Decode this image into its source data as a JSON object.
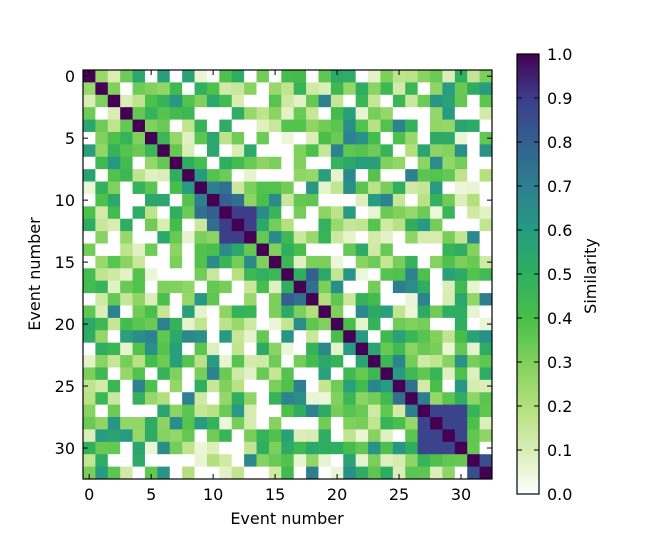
{
  "chart_data": {
    "type": "heatmap",
    "title": "",
    "xlabel": "Event number",
    "ylabel": "Event number",
    "colorbar_label": "Similarity",
    "size": 33,
    "xlim": [
      -0.5,
      32.5
    ],
    "ylim": [
      32.5,
      -0.5
    ],
    "x_ticks": [
      0,
      5,
      10,
      15,
      20,
      25,
      30
    ],
    "y_ticks": [
      0,
      5,
      10,
      15,
      20,
      25,
      30
    ],
    "colorbar_ticks": [
      "0.0",
      "0.1",
      "0.2",
      "0.3",
      "0.4",
      "0.5",
      "0.6",
      "0.7",
      "0.8",
      "0.9",
      "1.0"
    ],
    "colorbar_range": [
      0.0,
      1.0
    ],
    "colormap": "viridis_r",
    "colormap_stops": [
      "#ffffff",
      "#d9edb4",
      "#b3e07c",
      "#7fd05c",
      "#48bf4a",
      "#2fae5f",
      "#279a83",
      "#2d7f8f",
      "#345f8f",
      "#3d3d8a",
      "#440154"
    ],
    "grid": false,
    "blocks": [
      {
        "start": 11,
        "end": 13,
        "value": 0.9
      },
      {
        "start": 27,
        "end": 30,
        "value": 0.88
      }
    ],
    "pair_values": [
      {
        "i": 0,
        "j": 1,
        "v": 0.25
      },
      {
        "i": 0,
        "j": 2,
        "v": 0.1
      },
      {
        "i": 1,
        "j": 2,
        "v": 0.3
      },
      {
        "i": 2,
        "j": 3,
        "v": 0.1
      },
      {
        "i": 3,
        "j": 4,
        "v": 0.35
      },
      {
        "i": 4,
        "j": 5,
        "v": 0.3
      },
      {
        "i": 5,
        "j": 6,
        "v": 0.45
      },
      {
        "i": 6,
        "j": 7,
        "v": 0.35
      },
      {
        "i": 7,
        "j": 8,
        "v": 0.5
      },
      {
        "i": 8,
        "j": 9,
        "v": 0.6
      },
      {
        "i": 9,
        "j": 10,
        "v": 0.7
      },
      {
        "i": 9,
        "j": 11,
        "v": 0.75
      },
      {
        "i": 10,
        "j": 11,
        "v": 0.8
      },
      {
        "i": 10,
        "j": 12,
        "v": 0.75
      },
      {
        "i": 13,
        "j": 14,
        "v": 0.35
      },
      {
        "i": 14,
        "j": 15,
        "v": 0.3
      },
      {
        "i": 15,
        "j": 16,
        "v": 0.45
      },
      {
        "i": 16,
        "j": 17,
        "v": 0.5
      },
      {
        "i": 16,
        "j": 18,
        "v": 0.8
      },
      {
        "i": 17,
        "j": 18,
        "v": 0.75
      },
      {
        "i": 18,
        "j": 19,
        "v": 0.2
      },
      {
        "i": 19,
        "j": 20,
        "v": 0.3
      },
      {
        "i": 20,
        "j": 21,
        "v": 0.4
      },
      {
        "i": 21,
        "j": 22,
        "v": 0.6
      },
      {
        "i": 22,
        "j": 23,
        "v": 0.55
      },
      {
        "i": 23,
        "j": 24,
        "v": 0.45
      },
      {
        "i": 24,
        "j": 25,
        "v": 0.6
      },
      {
        "i": 25,
        "j": 26,
        "v": 0.75
      },
      {
        "i": 26,
        "j": 27,
        "v": 0.7
      },
      {
        "i": 30,
        "j": 31,
        "v": 0.35
      },
      {
        "i": 31,
        "j": 32,
        "v": 0.85
      },
      {
        "i": 17,
        "j": 25,
        "v": 0.7
      },
      {
        "i": 17,
        "j": 26,
        "v": 0.65
      },
      {
        "i": 18,
        "j": 32,
        "v": 0.7
      },
      {
        "i": 7,
        "j": 11,
        "v": 0.5
      },
      {
        "i": 9,
        "j": 25,
        "v": 0.5
      }
    ],
    "seed": 7
  }
}
